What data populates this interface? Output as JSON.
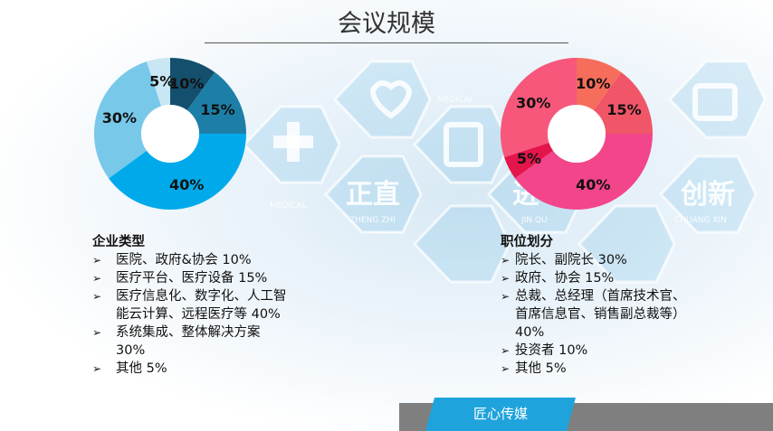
{
  "title": "会议规模",
  "background_words": {
    "medical_a": "MEDICAL",
    "medical_b": "MEDICAL",
    "zhengzhi_cn": "正直",
    "zhengzhi_en": "ZHENG ZHI",
    "jinqu_cn": "进",
    "jinqu_en": "JIN QU",
    "chuangxin_cn": "创新",
    "chuangxin_en": "CHUANG XIN"
  },
  "chart_data": [
    {
      "type": "pie",
      "name": "enterprise-type",
      "donut": true,
      "slices": [
        {
          "label": "医院、政府&协会",
          "value": 10,
          "display": "10%",
          "color": "#14506d"
        },
        {
          "label": "医疗平台、医疗设备",
          "value": 15,
          "display": "15%",
          "color": "#1d7fa8"
        },
        {
          "label": "医疗信息化、数字化、人工智能云计算、远程医疗等",
          "value": 40,
          "display": "40%",
          "color": "#00aaea"
        },
        {
          "label": "系统集成、整体解决方案",
          "value": 30,
          "display": "30%",
          "color": "#78c8ea"
        },
        {
          "label": "其他",
          "value": 5,
          "display": "5%",
          "color": "#c9e6f4"
        }
      ],
      "start": "top",
      "direction": "clockwise"
    },
    {
      "type": "pie",
      "name": "position-distribution",
      "donut": true,
      "slices": [
        {
          "label": "投资者",
          "value": 10,
          "display": "10%",
          "color": "#f66d5c"
        },
        {
          "label": "政府、协会",
          "value": 15,
          "display": "15%",
          "color": "#f15568"
        },
        {
          "label": "总裁、总经理（首席技术官、首席信息官、销售副总裁等）",
          "value": 40,
          "display": "40%",
          "color": "#f2458a"
        },
        {
          "label": "其他",
          "value": 5,
          "display": "5%",
          "color": "#e4154a"
        },
        {
          "label": "院长、副院长",
          "value": 30,
          "display": "30%",
          "color": "#f7577a"
        }
      ],
      "start": "top",
      "direction": "clockwise"
    }
  ],
  "left_list": {
    "title": "企业类型",
    "arrow": "➢",
    "items": [
      [
        "医院、政府&协会  10%"
      ],
      [
        "医疗平台、医疗设备  15%"
      ],
      [
        "医疗信息化、数字化、人工智",
        "能云计算、远程医疗等   40%"
      ],
      [
        "系统集成、整体解决方案",
        "30%"
      ],
      [
        "其他   5%"
      ]
    ]
  },
  "right_list": {
    "title": "职位划分",
    "arrow": "➢",
    "items": [
      [
        "院长、副院长    30%"
      ],
      [
        "政府、协会     15%"
      ],
      [
        "总裁、总经理（首席技术官、",
        "首席信息官、销售副总裁等）",
        "40%"
      ],
      [
        "投资者  10%"
      ],
      [
        "其他    5%"
      ]
    ]
  },
  "footer": {
    "brand": "匠心传媒",
    "bar_color": "#7f7f7f",
    "tag_color": "#1fa3dc"
  }
}
